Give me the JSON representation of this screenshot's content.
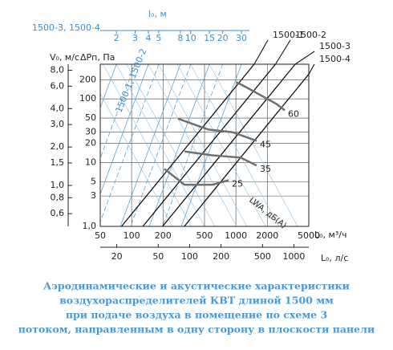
{
  "chart_data": {
    "type": "nomogram",
    "caption": [
      "Аэродинамические и акустические характеристики",
      "воздухораспределителей КВТ длиной 1500 мм",
      "при подаче воздуха в помещение по схеме 3",
      "потоком, направленным в одну сторону в плоскости панели"
    ],
    "x_label": "L₀, м³/ч",
    "x2_label": "L₀, л/с",
    "x3_label": "l₀, м",
    "x3_group_label": "1500-3, 1500-4",
    "x3_group_label2": "1500-1, 1500-2",
    "y_label": "ΔPп, Па",
    "y2_label": "V₀, м/с",
    "noise_label": "LWA, дБ(A)",
    "log_scale": true,
    "grid": true,
    "xlim": [
      50,
      5000
    ],
    "xticks": [
      50,
      100,
      200,
      500,
      1000,
      2000,
      5000
    ],
    "x2lim": [
      13.89,
      1388.9
    ],
    "x2ticks": [
      20,
      50,
      100,
      200,
      500,
      1000
    ],
    "x3lim": [
      1.41,
      129
    ],
    "x3ticks": [
      2,
      3,
      4,
      5,
      8,
      10,
      15,
      20,
      30
    ],
    "ylim": [
      1,
      350
    ],
    "yticks": [
      {
        "value": 1,
        "label": "1,0"
      },
      3,
      5,
      10,
      20,
      30,
      50,
      100,
      200
    ],
    "y2lim": [
      0.477,
      8.92
    ],
    "y2ticks": [
      {
        "value": 0.6,
        "label": "0,6"
      },
      {
        "value": 0.8,
        "label": "0,8"
      },
      {
        "value": 1.0,
        "label": "1,0"
      },
      {
        "value": 1.5,
        "label": "1,5"
      },
      {
        "value": 2.0,
        "label": "2,0"
      },
      {
        "value": 3.0,
        "label": "3,0"
      },
      {
        "value": 4.0,
        "label": "4,0"
      },
      {
        "value": 6.0,
        "label": "6,0"
      },
      {
        "value": 8.0,
        "label": "8,0"
      }
    ],
    "series": [
      {
        "name": "1500-1",
        "color": "#111111",
        "x": [
          80,
          1497
        ],
        "values": [
          1,
          350
        ]
      },
      {
        "name": "1500-2",
        "color": "#111111",
        "x": [
          128,
          2395
        ],
        "values": [
          1,
          350
        ]
      },
      {
        "name": "1500-3",
        "color": "#111111",
        "x": [
          198,
          3704
        ],
        "values": [
          1,
          350
        ]
      },
      {
        "name": "1500-4",
        "color": "#111111",
        "x": [
          320,
          5000
        ],
        "values": [
          1,
          244
        ]
      },
      {
        "name": "60",
        "color": "#6f6f6f",
        "x": [
          1016,
          1371,
          2461,
          2940
        ],
        "values": [
          183,
          141,
          83,
          66
        ]
      },
      {
        "name": "45",
        "color": "#6f6f6f",
        "x": [
          279,
          546,
          929,
          1581
        ],
        "values": [
          49,
          33,
          30,
          22
        ]
      },
      {
        "name": "35",
        "color": "#6f6f6f",
        "x": [
          321,
          597,
          1110,
          1581
        ],
        "values": [
          15,
          13,
          12,
          9
        ]
      },
      {
        "name": "25",
        "color": "#6f6f6f",
        "x": [
          206,
          321,
          597,
          851
        ],
        "values": [
          8,
          4.5,
          4.5,
          5.3
        ]
      }
    ]
  }
}
